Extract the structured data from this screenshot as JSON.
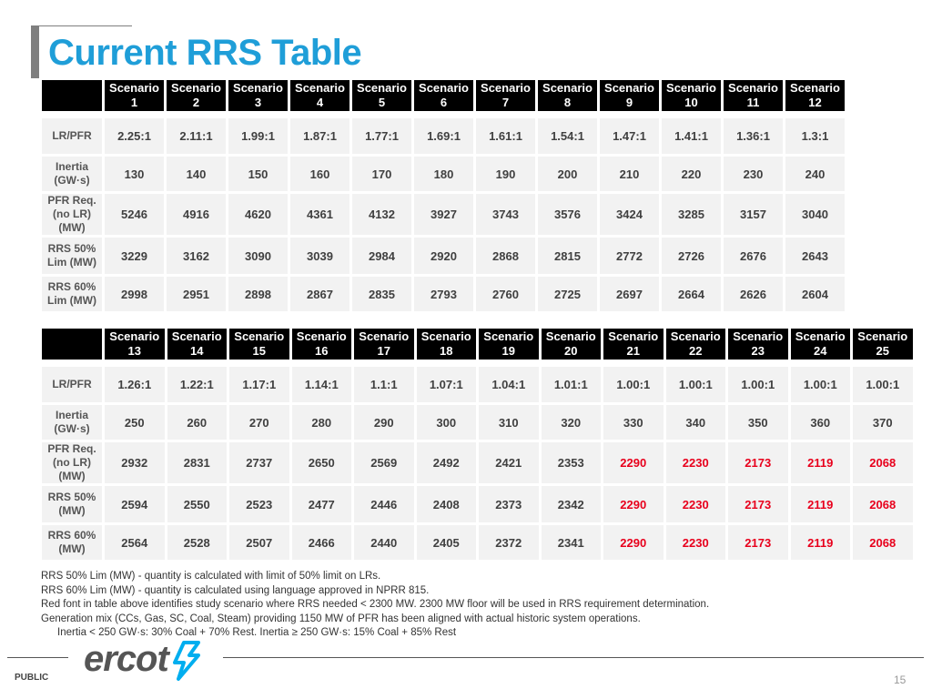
{
  "slide": {
    "title": "Current RRS Table",
    "public_label": "PUBLIC",
    "page_number": "15"
  },
  "logo": {
    "text": "ercot"
  },
  "table1": {
    "headers": [
      [
        "Scenario",
        "1"
      ],
      [
        "Scenario",
        "2"
      ],
      [
        "Scenario",
        "3"
      ],
      [
        "Scenario",
        "4"
      ],
      [
        "Scenario",
        "5"
      ],
      [
        "Scenario",
        "6"
      ],
      [
        "Scenario",
        "7"
      ],
      [
        "Scenario",
        "8"
      ],
      [
        "Scenario",
        "9"
      ],
      [
        "Scenario",
        "10"
      ],
      [
        "Scenario",
        "11"
      ],
      [
        "Scenario",
        "12"
      ]
    ],
    "row_labels": [
      [
        "LR/PFR"
      ],
      [
        "Inertia",
        "(GW·s)"
      ],
      [
        "PFR Req.",
        "(no LR)",
        "(MW)"
      ],
      [
        "RRS 50%",
        "Lim (MW)"
      ],
      [
        "RRS 60%",
        "Lim (MW)"
      ]
    ],
    "rows": [
      [
        "2.25:1",
        "2.11:1",
        "1.99:1",
        "1.87:1",
        "1.77:1",
        "1.69:1",
        "1.61:1",
        "1.54:1",
        "1.47:1",
        "1.41:1",
        "1.36:1",
        "1.3:1"
      ],
      [
        "130",
        "140",
        "150",
        "160",
        "170",
        "180",
        "190",
        "200",
        "210",
        "220",
        "230",
        "240"
      ],
      [
        "5246",
        "4916",
        "4620",
        "4361",
        "4132",
        "3927",
        "3743",
        "3576",
        "3424",
        "3285",
        "3157",
        "3040"
      ],
      [
        "3229",
        "3162",
        "3090",
        "3039",
        "2984",
        "2920",
        "2868",
        "2815",
        "2772",
        "2726",
        "2676",
        "2643"
      ],
      [
        "2998",
        "2951",
        "2898",
        "2867",
        "2835",
        "2793",
        "2760",
        "2725",
        "2697",
        "2664",
        "2626",
        "2604"
      ]
    ]
  },
  "table2": {
    "headers": [
      [
        "Scenario",
        "13"
      ],
      [
        "Scenario",
        "14"
      ],
      [
        "Scenario",
        "15"
      ],
      [
        "Scenario",
        "16"
      ],
      [
        "Scenario",
        "17"
      ],
      [
        "Scenario",
        "18"
      ],
      [
        "Scenario",
        "19"
      ],
      [
        "Scenario",
        "20"
      ],
      [
        "Scenario",
        "21"
      ],
      [
        "Scenario",
        "22"
      ],
      [
        "Scenario",
        "23"
      ],
      [
        "Scenario",
        "24"
      ],
      [
        "Scenario",
        "25"
      ]
    ],
    "row_labels": [
      [
        "LR/PFR"
      ],
      [
        "Inertia",
        "(GW·s)"
      ],
      [
        "PFR Req.",
        "(no LR)",
        "(MW)"
      ],
      [
        "RRS 50%",
        "(MW)"
      ],
      [
        "RRS 60%",
        "(MW)"
      ]
    ],
    "rows": [
      [
        "1.26:1",
        "1.22:1",
        "1.17:1",
        "1.14:1",
        "1.1:1",
        "1.07:1",
        "1.04:1",
        "1.01:1",
        "1.00:1",
        "1.00:1",
        "1.00:1",
        "1.00:1",
        "1.00:1"
      ],
      [
        "250",
        "260",
        "270",
        "280",
        "290",
        "300",
        "310",
        "320",
        "330",
        "340",
        "350",
        "360",
        "370"
      ],
      [
        "2932",
        "2831",
        "2737",
        "2650",
        "2569",
        "2492",
        "2421",
        "2353",
        "2290",
        "2230",
        "2173",
        "2119",
        "2068"
      ],
      [
        "2594",
        "2550",
        "2523",
        "2477",
        "2446",
        "2408",
        "2373",
        "2342",
        "2290",
        "2230",
        "2173",
        "2119",
        "2068"
      ],
      [
        "2564",
        "2528",
        "2507",
        "2466",
        "2440",
        "2405",
        "2372",
        "2341",
        "2290",
        "2230",
        "2173",
        "2119",
        "2068"
      ]
    ],
    "red_font_color": "#e8001c",
    "red_rows": [
      2,
      3,
      4
    ],
    "red_start_col": 8
  },
  "notes": [
    "RRS 50% Lim (MW) - quantity is calculated with limit of 50% limit on LRs.",
    "RRS 60% Lim (MW) - quantity is calculated using language approved in NPRR 815.",
    "Red font in table above identifies study scenario where RRS needed < 2300 MW. 2300 MW floor will be used in RRS requirement determination.",
    "Generation mix (CCs, Gas, SC, Coal, Steam)  providing 1150 MW of PFR has been aligned with actual historic system operations.",
    "Inertia < 250 GW·s: 30% Coal + 70% Rest. Inertia ≥ 250 GW·s: 15% Coal + 85% Rest"
  ],
  "colors": {
    "title": "#1f9ed8",
    "header_bg": "#000000",
    "cell_bg": "#f2f2f2",
    "logo_accent": "#00aeef"
  }
}
